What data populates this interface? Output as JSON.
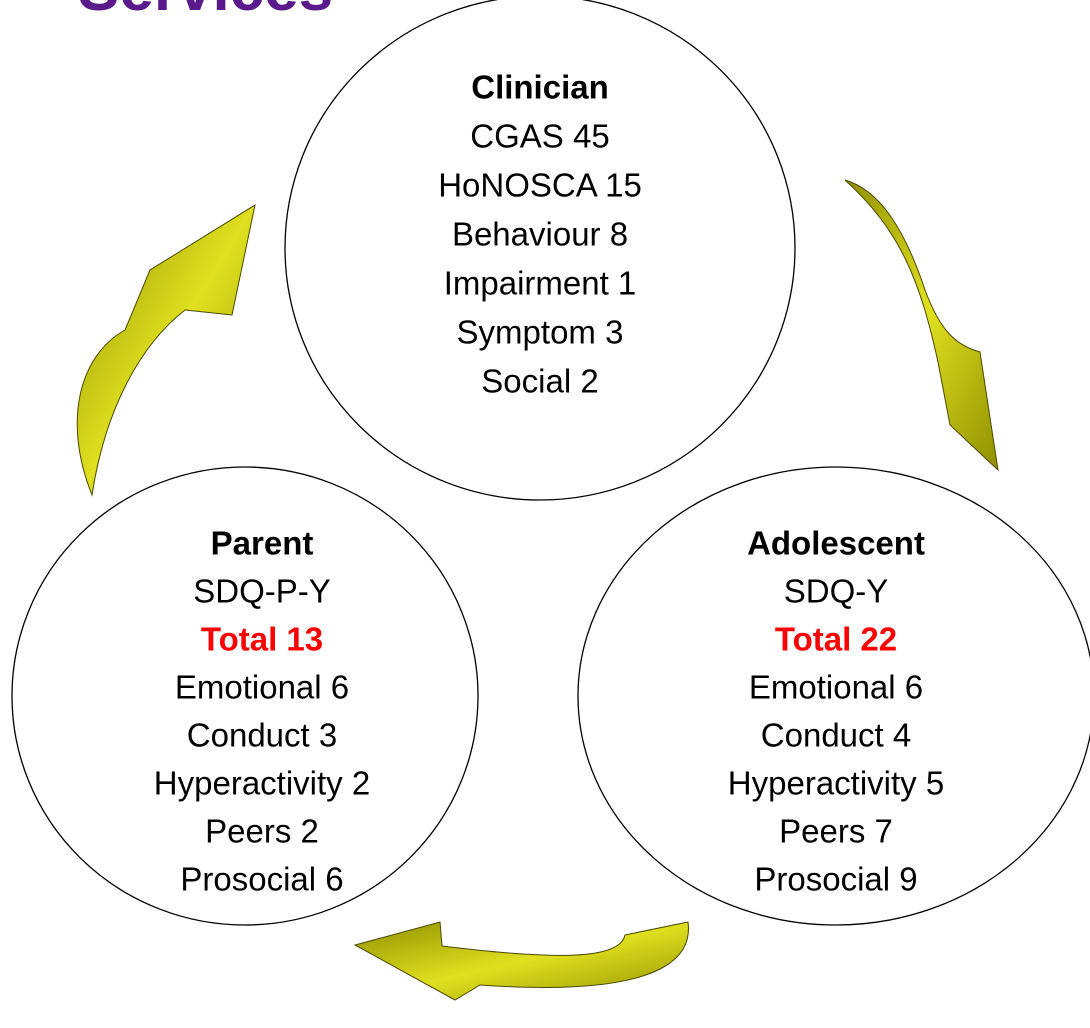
{
  "title": "Services",
  "nodes": [
    {
      "label": "Clinician",
      "lines": [
        "CGAS 45",
        "HoNOSCA 15",
        "Behaviour 8",
        "Impairment 1",
        "Symptom 3",
        "Social 2"
      ]
    },
    {
      "label": "Parent",
      "instrument": "SDQ-P-Y",
      "total": "Total 13",
      "lines": [
        "Emotional 6",
        "Conduct 3",
        "Hyperactivity 2",
        "Peers 2",
        "Prosocial 6"
      ]
    },
    {
      "label": "Adolescent",
      "instrument": "SDQ-Y",
      "total": "Total 22",
      "lines": [
        "Emotional 6",
        "Conduct 4",
        "Hyperactivity 5",
        "Peers 7",
        "Prosocial 9"
      ]
    }
  ]
}
